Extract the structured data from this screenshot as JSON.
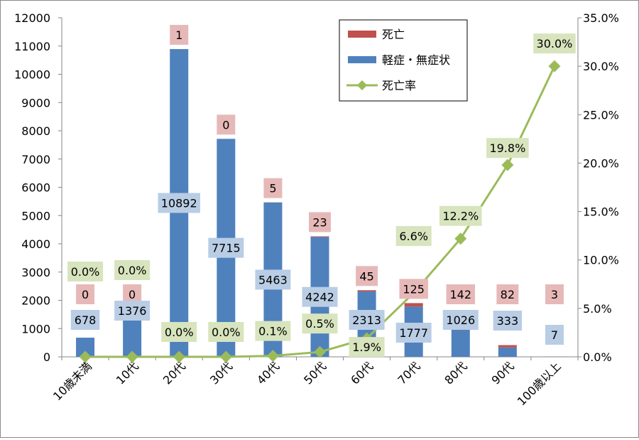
{
  "chart_data": {
    "type": "bar",
    "stacked": true,
    "categories": [
      "10歳未満",
      "10代",
      "20代",
      "30代",
      "40代",
      "50代",
      "60代",
      "70代",
      "80代",
      "90代",
      "100歳以上"
    ],
    "series": [
      {
        "name": "軽症・無症状",
        "type": "bar",
        "axis": "left",
        "color": "#4f81bd",
        "label_bg": "#b9cde5",
        "values": [
          678,
          1376,
          10892,
          7715,
          5463,
          4242,
          2313,
          1777,
          1026,
          333,
          7
        ]
      },
      {
        "name": "死亡",
        "type": "bar",
        "axis": "left",
        "color": "#c0504d",
        "label_bg": "#e6b9b8",
        "values": [
          0,
          0,
          1,
          0,
          5,
          23,
          45,
          125,
          142,
          82,
          3
        ]
      },
      {
        "name": "死亡率",
        "type": "line",
        "axis": "right",
        "color": "#9bbb59",
        "label_bg": "#d7e4bd",
        "values": [
          0.0,
          0.0,
          0.0,
          0.0,
          0.1,
          0.5,
          1.9,
          6.6,
          12.2,
          19.8,
          30.0
        ],
        "labels": [
          "0.0%",
          "0.0%",
          "0.0%",
          "0.0%",
          "0.1%",
          "0.5%",
          "1.9%",
          "6.6%",
          "12.2%",
          "19.8%",
          "30.0%"
        ]
      }
    ],
    "y_left": {
      "min": 0,
      "max": 12000,
      "step": 1000,
      "ticks": [
        "0",
        "1000",
        "2000",
        "3000",
        "4000",
        "5000",
        "6000",
        "7000",
        "8000",
        "9000",
        "10000",
        "11000",
        "12000"
      ]
    },
    "y_right": {
      "min": 0,
      "max": 35,
      "step": 5,
      "ticks": [
        "0.0%",
        "5.0%",
        "10.0%",
        "15.0%",
        "20.0%",
        "25.0%",
        "30.0%",
        "35.0%"
      ]
    },
    "grid": false,
    "legend": {
      "position": "top-right",
      "order": [
        "死亡",
        "軽症・無症状",
        "死亡率"
      ]
    }
  }
}
